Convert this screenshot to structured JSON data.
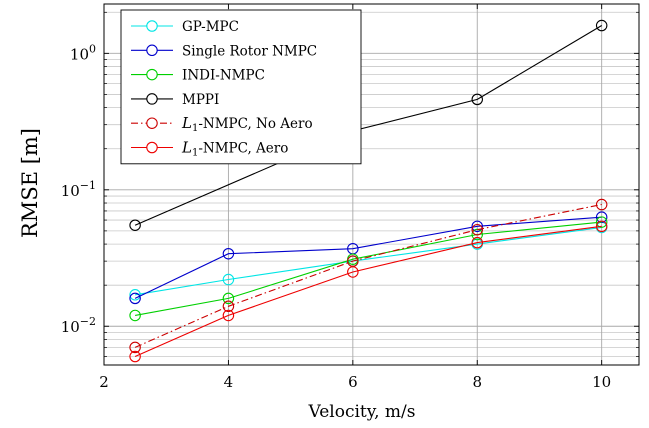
{
  "chart_data": {
    "type": "line",
    "xlabel": "Velocity, m/s",
    "ylabel": "RMSE [m]",
    "xlim": [
      2,
      10.6
    ],
    "ylim": [
      0.0052,
      2.3
    ],
    "yscale": "log",
    "grid": true,
    "legend_position": "top-left",
    "x_ticks": [
      2,
      4,
      6,
      8,
      10
    ],
    "x_tick_labels": [
      "2",
      "4",
      "6",
      "8",
      "10"
    ],
    "y_major_ticks": [
      0.01,
      0.1,
      1
    ],
    "y_tick_labels": [
      {
        "base": "10",
        "exp": "−2"
      },
      {
        "base": "10",
        "exp": "−1"
      },
      {
        "base": "10",
        "exp": "0"
      }
    ],
    "x": [
      2.5,
      4,
      6,
      8,
      10
    ],
    "series": [
      {
        "name": "GP-MPC",
        "color": "#00e5e5",
        "dash": "solid",
        "values": [
          0.017,
          0.022,
          0.03,
          0.04,
          0.053
        ]
      },
      {
        "name": "Single Rotor NMPC",
        "color": "#0000cc",
        "dash": "solid",
        "values": [
          0.016,
          0.034,
          0.037,
          0.054,
          0.063
        ]
      },
      {
        "name": "INDI-NMPC",
        "color": "#00d000",
        "dash": "solid",
        "values": [
          0.012,
          0.016,
          0.031,
          0.047,
          0.058
        ]
      },
      {
        "name": "MPPI",
        "color": "#000000",
        "dash": "solid",
        "values": [
          0.055,
          null,
          0.27,
          0.46,
          1.6
        ]
      },
      {
        "name_prefix": "L",
        "name_sub": "1",
        "name_suffix": "-NMPC, No Aero",
        "name": "L1-NMPC, No Aero",
        "color": "#cc0000",
        "dash": "dashdot",
        "values": [
          0.007,
          0.014,
          0.03,
          0.051,
          0.078
        ]
      },
      {
        "name_prefix": "L",
        "name_sub": "1",
        "name_suffix": "-NMPC, Aero",
        "name": "L1-NMPC, Aero",
        "color": "#ee0000",
        "dash": "solid",
        "values": [
          0.006,
          0.012,
          0.025,
          0.041,
          0.054
        ]
      }
    ]
  }
}
